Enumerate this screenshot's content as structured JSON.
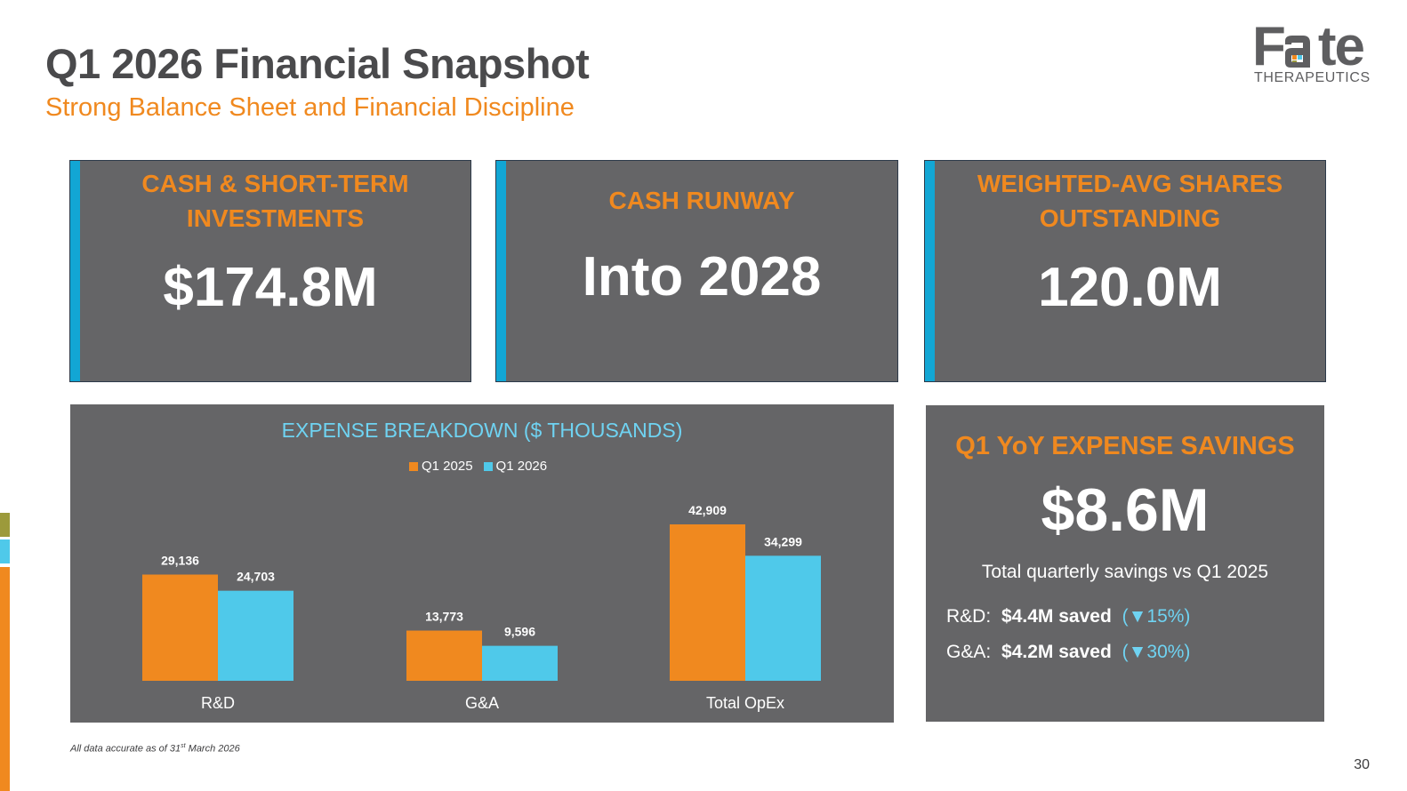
{
  "header": {
    "title": "Q1 2026 Financial Snapshot",
    "subtitle": "Strong Balance Sheet and Financial Discipline"
  },
  "logo": {
    "word_part1": "F",
    "word_part2": "te",
    "sub": "THERAPEUTICS"
  },
  "cards": [
    {
      "label": "CASH & SHORT-TERM INVESTMENTS",
      "value": "$174.8M"
    },
    {
      "label": "CASH RUNWAY",
      "value": "Into 2028"
    },
    {
      "label": "WEIGHTED-AVG SHARES OUTSTANDING",
      "value": "120.0M"
    }
  ],
  "savings": {
    "title": "Q1 YoY EXPENSE SAVINGS",
    "value": "$8.6M",
    "note": "Total quarterly savings vs Q1 2025",
    "lines": [
      {
        "label": "R&D:",
        "amount": "$4.4M saved",
        "pct": "(▼15%)"
      },
      {
        "label": "G&A:",
        "amount": "$4.2M saved",
        "pct": "(▼30%)"
      }
    ]
  },
  "footnote": {
    "pre": "All data accurate as of 31",
    "sup": "st",
    "post": " March 2026"
  },
  "page_number": "30",
  "colors": {
    "orange": "#f0891f",
    "blue": "#4fc9ea",
    "card_bg": "#656567",
    "accent_bar": "#12a6d4",
    "olive": "#9c9a3b"
  },
  "chart_data": {
    "type": "bar",
    "title": "EXPENSE BREAKDOWN ($ THOUSANDS)",
    "categories": [
      "R&D",
      "G&A",
      "Total OpEx"
    ],
    "series": [
      {
        "name": "Q1 2025",
        "values": [
          29136,
          13773,
          42909
        ],
        "labels": [
          "29,136",
          "13,773",
          "42,909"
        ],
        "color": "#f0891f"
      },
      {
        "name": "Q1 2026",
        "values": [
          24703,
          9596,
          34299
        ],
        "labels": [
          "24,703",
          "9,596",
          "34,299"
        ],
        "color": "#4fc9ea"
      }
    ],
    "ylim": [
      0,
      60000
    ],
    "grid": false,
    "legend": "top-center"
  }
}
